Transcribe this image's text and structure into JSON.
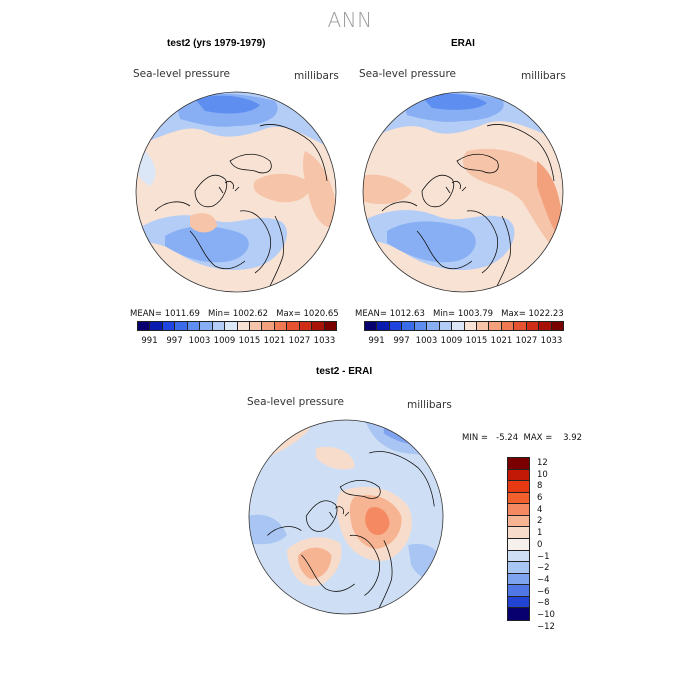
{
  "title": "ANN",
  "panels": {
    "test": {
      "title": "test2 (yrs 1979-1979)",
      "variable": "Sea-level pressure",
      "units": "millibars",
      "stats": "MEAN= 1011.69   Min= 1002.62   Max= 1020.65"
    },
    "obs": {
      "title": "ERAI",
      "variable": "Sea-level pressure",
      "units": "millibars",
      "stats": "MEAN= 1012.63   Min= 1003.79   Max= 1022.23"
    },
    "diff": {
      "title": "test2 - ERAI",
      "variable": "Sea-level pressure",
      "units": "millibars",
      "stats": "MIN =   -5.24  MAX =    3.92"
    }
  },
  "colorbar_main": {
    "labels": [
      "991",
      "997",
      "1003",
      "1009",
      "1015",
      "1021",
      "1027",
      "1033"
    ],
    "colors": [
      "#08006e",
      "#0a1cb0",
      "#1f45e0",
      "#3a6be8",
      "#5e8ff0",
      "#88aff4",
      "#b3cdf6",
      "#dbe7f7",
      "#f8e2d4",
      "#f6c4a8",
      "#f3a07c",
      "#ef7a52",
      "#e55330",
      "#cf2d16",
      "#a81106",
      "#7a0000"
    ]
  },
  "colorbar_diff": {
    "labels": [
      "12",
      "10",
      "8",
      "6",
      "4",
      "2",
      "1",
      "0",
      "-1",
      "-2",
      "-4",
      "-6",
      "-8",
      "-10",
      "-12"
    ],
    "colors": [
      "#7a0000",
      "#c21806",
      "#e83a12",
      "#f3602e",
      "#f58a62",
      "#f6b493",
      "#f8dccb",
      "#f7f1ee",
      "#cedff5",
      "#a9c5f3",
      "#7ea4ef",
      "#4f78e6",
      "#2343d4",
      "#08006e"
    ]
  }
}
